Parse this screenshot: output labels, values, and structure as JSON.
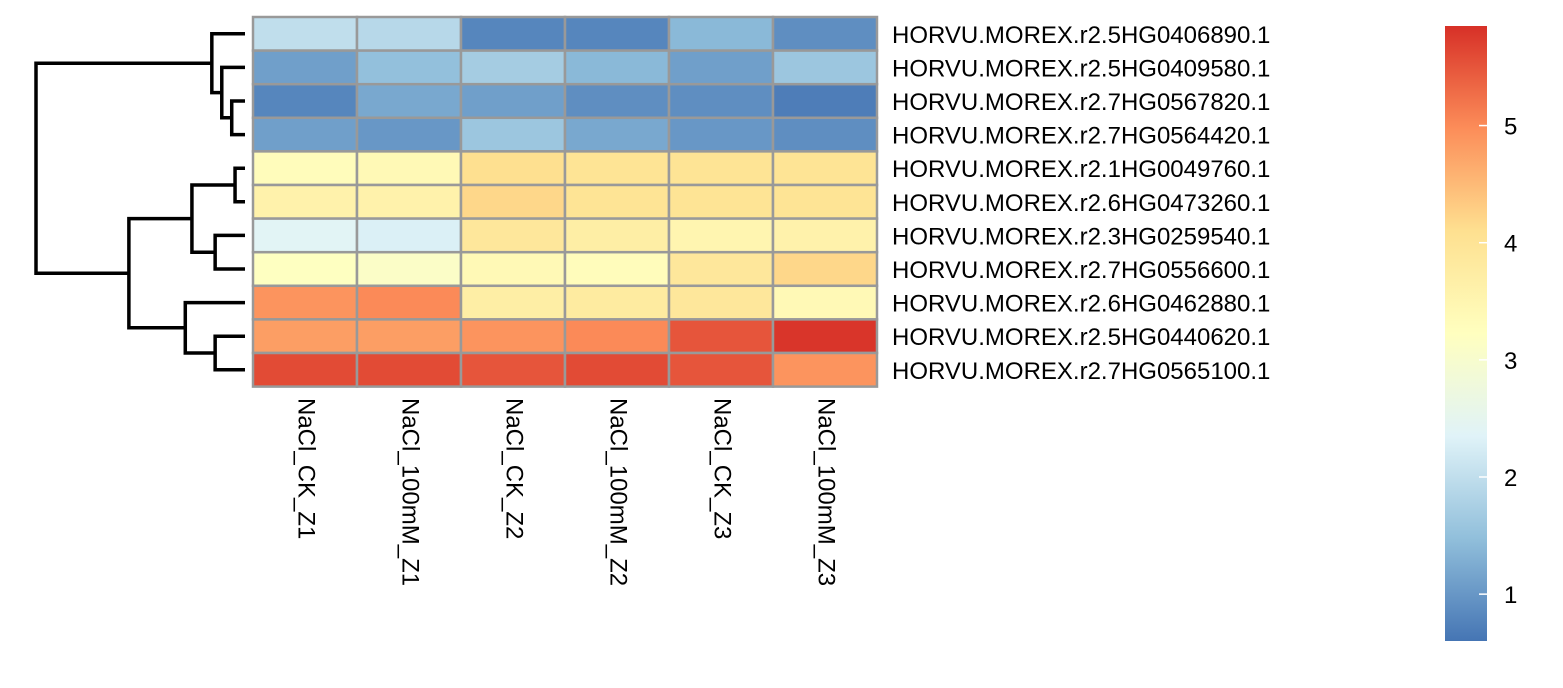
{
  "chart_data": {
    "type": "heatmap",
    "columns": [
      "NaCl_CK_Z1",
      "NaCl_100mM_Z1",
      "NaCl_CK_Z2",
      "NaCl_100mM_Z2",
      "NaCl_CK_Z3",
      "NaCl_100mM_Z3"
    ],
    "rows": [
      "HORVU.MOREX.r2.5HG0406890.1",
      "HORVU.MOREX.r2.5HG0409580.1",
      "HORVU.MOREX.r2.7HG0567820.1",
      "HORVU.MOREX.r2.7HG0564420.1",
      "HORVU.MOREX.r2.1HG0049760.1",
      "HORVU.MOREX.r2.6HG0473260.1",
      "HORVU.MOREX.r2.3HG0259540.1",
      "HORVU.MOREX.r2.7HG0556600.1",
      "HORVU.MOREX.r2.6HG0462880.1",
      "HORVU.MOREX.r2.5HG0440620.1",
      "HORVU.MOREX.r2.7HG0565100.1"
    ],
    "values": [
      [
        2.0,
        1.9,
        0.8,
        0.8,
        1.4,
        0.9
      ],
      [
        1.1,
        1.5,
        1.7,
        1.4,
        1.1,
        1.6
      ],
      [
        0.8,
        1.2,
        1.1,
        0.9,
        0.9,
        0.7
      ],
      [
        1.1,
        1.0,
        1.6,
        1.2,
        1.0,
        0.9
      ],
      [
        3.3,
        3.4,
        4.1,
        4.0,
        4.0,
        4.0
      ],
      [
        3.6,
        3.6,
        4.2,
        4.0,
        4.0,
        4.0
      ],
      [
        2.4,
        2.3,
        3.9,
        3.7,
        3.5,
        3.6
      ],
      [
        3.2,
        3.1,
        3.4,
        3.3,
        3.9,
        4.2
      ],
      [
        4.9,
        5.0,
        3.7,
        3.8,
        3.9,
        3.4
      ],
      [
        4.8,
        4.8,
        4.9,
        5.0,
        5.5,
        5.8
      ],
      [
        5.6,
        5.6,
        5.5,
        5.6,
        5.5,
        4.9
      ]
    ],
    "color_scale": {
      "min": 0.6,
      "max": 5.85,
      "stops": [
        "#4575B4",
        "#91BFDB",
        "#E0F3F8",
        "#FFFFBF",
        "#FEE090",
        "#FC8D59",
        "#D73027"
      ],
      "ticks": [
        1,
        2,
        3,
        4,
        5
      ]
    },
    "row_dendrogram": {
      "merges": [
        {
          "a": 2,
          "b": 3,
          "height": 0.4
        },
        {
          "a": 1,
          "b": "m0",
          "height": 0.7
        },
        {
          "a": 0,
          "b": "m1",
          "height": 1.0
        },
        {
          "a": 4,
          "b": 5,
          "height": 0.3
        },
        {
          "a": 6,
          "b": 7,
          "height": 0.9
        },
        {
          "a": "m3",
          "b": "m4",
          "height": 1.6
        },
        {
          "a": 9,
          "b": 10,
          "height": 0.9
        },
        {
          "a": 8,
          "b": "m6",
          "height": 1.8
        },
        {
          "a": "m5",
          "b": "m7",
          "height": 3.5
        },
        {
          "a": "m2",
          "b": "m8",
          "height": 6.3
        }
      ]
    },
    "grid_line_color": "#999999",
    "legend_placement": "right"
  }
}
